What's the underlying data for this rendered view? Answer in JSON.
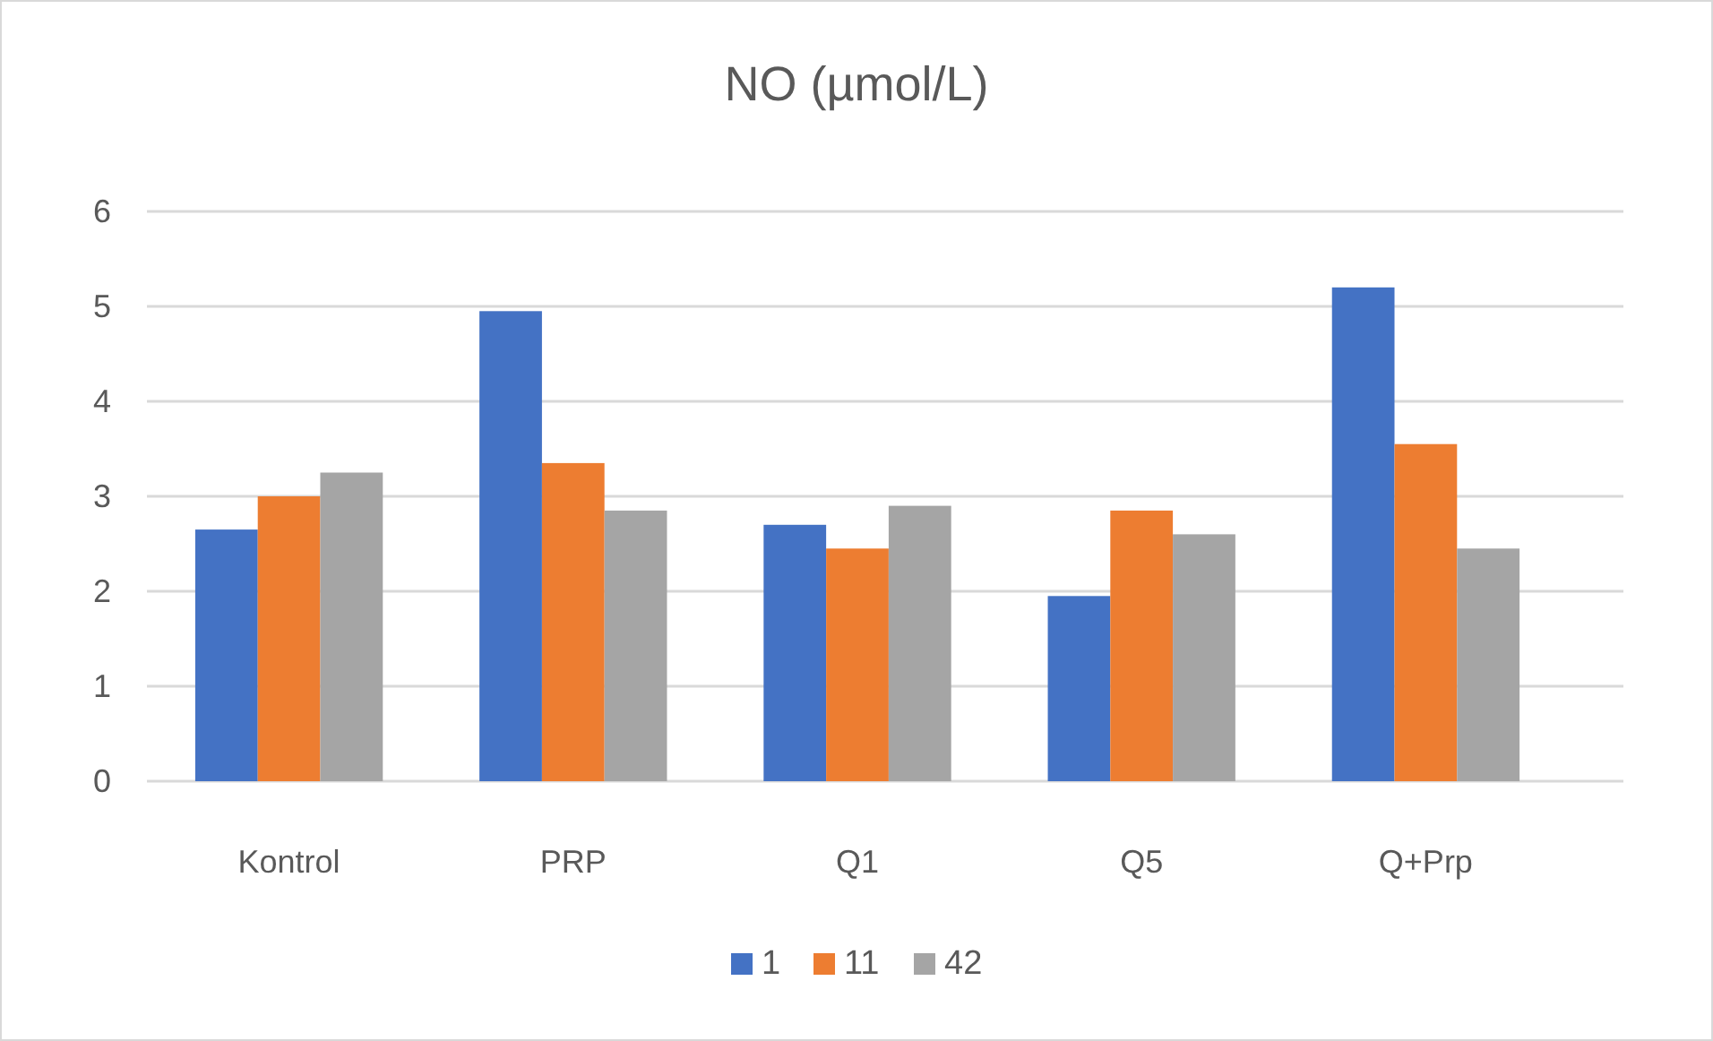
{
  "chart_data": {
    "type": "bar",
    "title": "NO (µmol/L)",
    "categories": [
      "Kontrol",
      "PRP",
      "Q1",
      "Q5",
      "Q+Prp"
    ],
    "series": [
      {
        "name": "1",
        "color": "#4472c4",
        "values": [
          2.65,
          4.95,
          2.7,
          1.95,
          5.2
        ]
      },
      {
        "name": "11",
        "color": "#ed7d31",
        "values": [
          3.0,
          3.35,
          2.45,
          2.85,
          3.55
        ]
      },
      {
        "name": "42",
        "color": "#a5a5a5",
        "values": [
          3.25,
          2.85,
          2.9,
          2.6,
          2.45
        ]
      }
    ],
    "ylim": [
      0,
      6
    ],
    "yticks": [
      0,
      1,
      2,
      3,
      4,
      5,
      6
    ],
    "grid": "y",
    "legend": "bottom"
  }
}
